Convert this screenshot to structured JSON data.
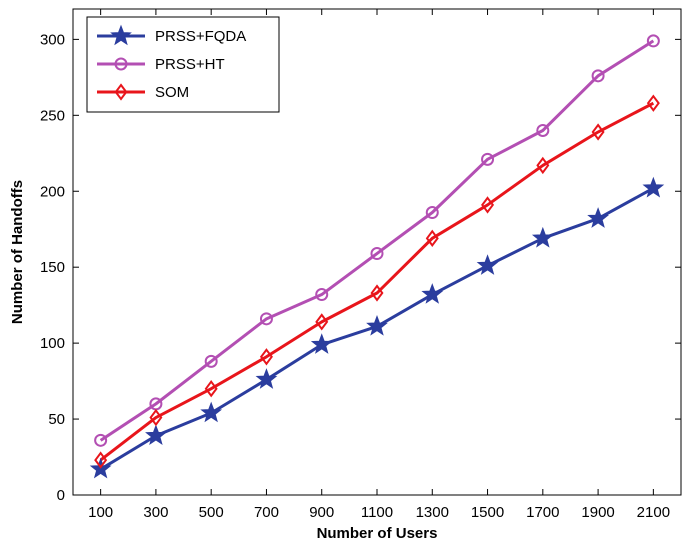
{
  "chart_data": {
    "type": "line",
    "xlabel": "Number of Users",
    "ylabel": "Number of Handoffs",
    "x": [
      100,
      300,
      500,
      700,
      900,
      1100,
      1300,
      1500,
      1700,
      1900,
      2100
    ],
    "xlim": [
      0,
      2200
    ],
    "ylim": [
      0,
      320
    ],
    "yticks": [
      0,
      50,
      100,
      150,
      200,
      250,
      300
    ],
    "grid": false,
    "legend_position": "top-left",
    "series": [
      {
        "name": "PRSS+FQDA",
        "color": "#2b3d9e",
        "marker": "star",
        "values": [
          17,
          39,
          54,
          76,
          99,
          111,
          132,
          151,
          169,
          182,
          202
        ]
      },
      {
        "name": "PRSS+HT",
        "color": "#b34fb3",
        "marker": "circle",
        "values": [
          36,
          60,
          88,
          116,
          132,
          159,
          186,
          221,
          240,
          276,
          299
        ]
      },
      {
        "name": "SOM",
        "color": "#e8151b",
        "marker": "diamond",
        "values": [
          23,
          51,
          70,
          91,
          114,
          133,
          169,
          191,
          217,
          239,
          258
        ]
      }
    ]
  }
}
